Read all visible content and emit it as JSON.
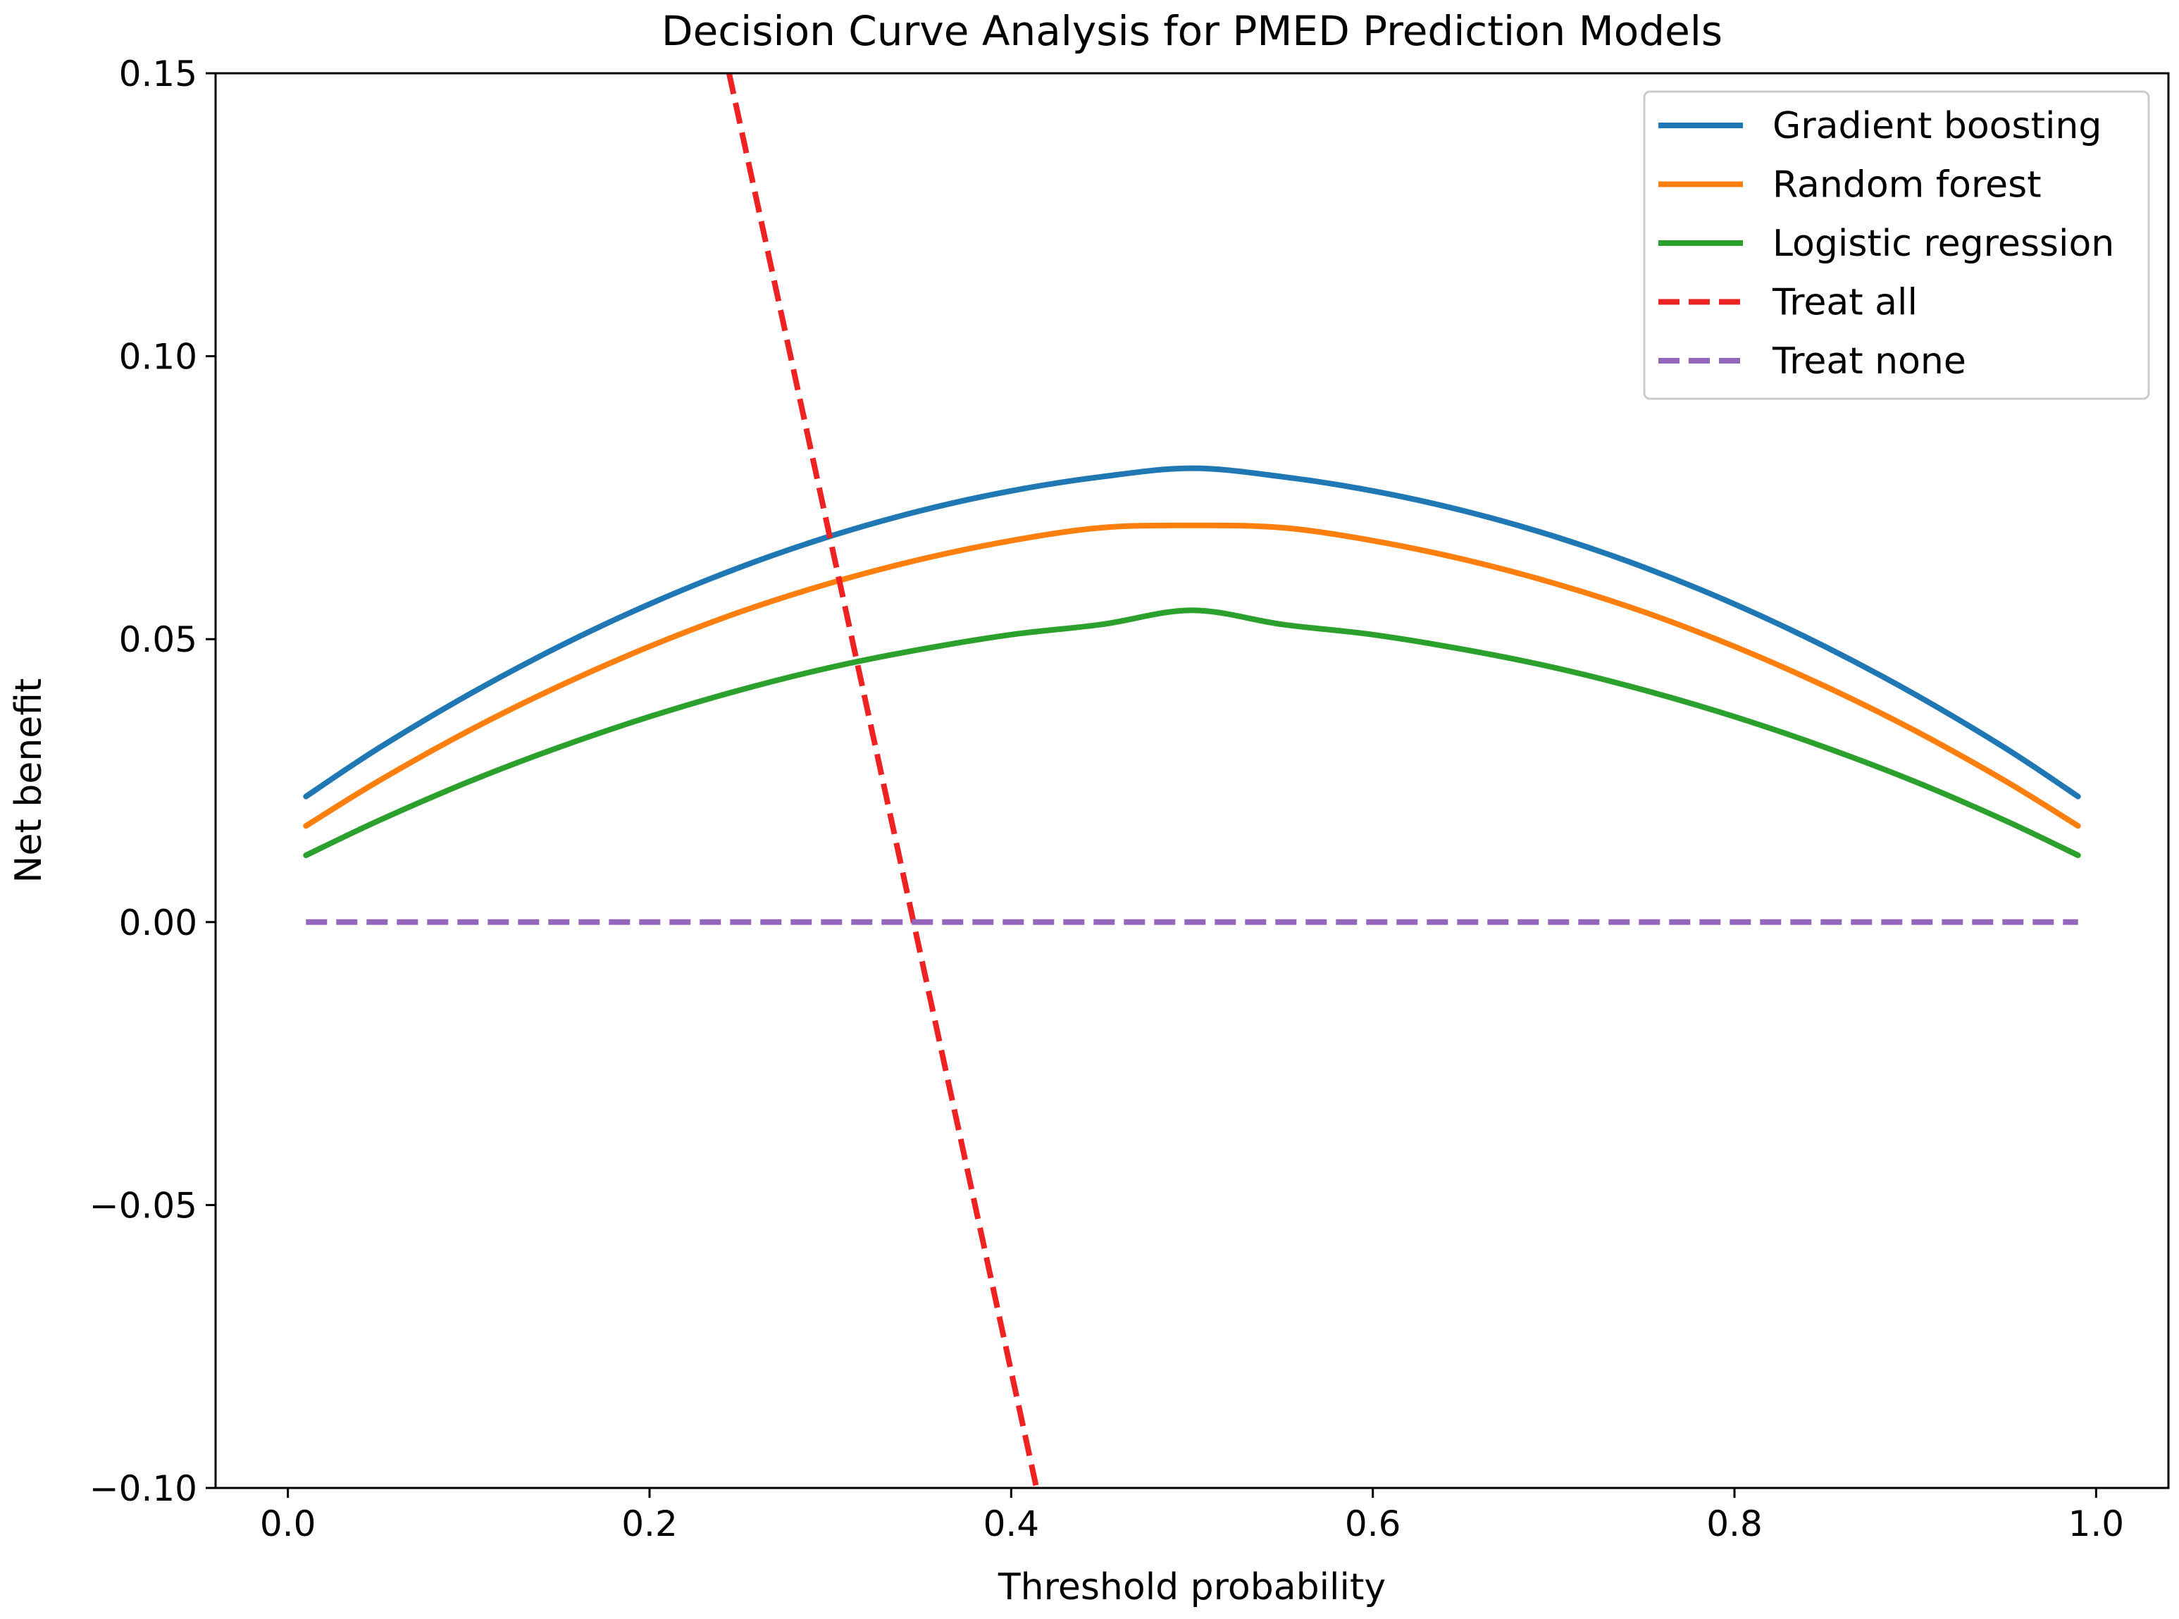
{
  "chart_data": {
    "type": "line",
    "title": "Decision Curve Analysis for PMED Prediction Models",
    "xlabel": "Threshold probability",
    "ylabel": "Net benefit",
    "xlim": [
      -0.04,
      1.04
    ],
    "ylim": [
      -0.1,
      0.15
    ],
    "xticks": [
      0.0,
      0.2,
      0.4,
      0.6,
      0.8,
      1.0
    ],
    "xtick_labels": [
      "0.0",
      "0.2",
      "0.4",
      "0.6",
      "0.8",
      "1.0"
    ],
    "yticks": [
      -0.1,
      -0.05,
      0.0,
      0.05,
      0.1,
      0.15
    ],
    "ytick_labels": [
      "−0.10",
      "−0.05",
      "0.00",
      "0.05",
      "0.10",
      "0.15"
    ],
    "grid": false,
    "legend_position": "top-right",
    "x": [
      0.01,
      0.05,
      0.1,
      0.15,
      0.2,
      0.25,
      0.3,
      0.35,
      0.4,
      0.45,
      0.5,
      0.55,
      0.6,
      0.65,
      0.7,
      0.75,
      0.8,
      0.85,
      0.9,
      0.95,
      0.99
    ],
    "series": [
      {
        "name": "Gradient boosting",
        "color": "#1f77b4",
        "style": "solid",
        "x": [
          0.01,
          0.05,
          0.1,
          0.15,
          0.2,
          0.25,
          0.3,
          0.35,
          0.4,
          0.45,
          0.5,
          0.55,
          0.6,
          0.65,
          0.7,
          0.75,
          0.8,
          0.85,
          0.9,
          0.95,
          0.99
        ],
        "values": [
          0.0222,
          0.0307,
          0.0402,
          0.0487,
          0.0562,
          0.0627,
          0.0682,
          0.0727,
          0.0762,
          0.0787,
          0.0802,
          0.0787,
          0.0762,
          0.0727,
          0.0682,
          0.0627,
          0.0562,
          0.0487,
          0.0402,
          0.0307,
          0.0222
        ]
      },
      {
        "name": "Random forest",
        "color": "#ff7f0e",
        "style": "solid",
        "x": [
          0.01,
          0.05,
          0.1,
          0.15,
          0.2,
          0.25,
          0.3,
          0.35,
          0.4,
          0.45,
          0.5,
          0.55,
          0.6,
          0.65,
          0.7,
          0.75,
          0.8,
          0.85,
          0.9,
          0.95,
          0.99
        ],
        "values": [
          0.017,
          0.0249,
          0.0338,
          0.0417,
          0.0487,
          0.0548,
          0.0599,
          0.0641,
          0.0674,
          0.0697,
          0.0701,
          0.0697,
          0.0674,
          0.0641,
          0.0599,
          0.0548,
          0.0487,
          0.0417,
          0.0338,
          0.0249,
          0.017
        ]
      },
      {
        "name": "Logistic regression",
        "color": "#2ca02c",
        "style": "solid",
        "x": [
          0.01,
          0.05,
          0.1,
          0.15,
          0.2,
          0.25,
          0.3,
          0.35,
          0.4,
          0.45,
          0.5,
          0.55,
          0.6,
          0.65,
          0.7,
          0.75,
          0.8,
          0.85,
          0.9,
          0.95,
          0.99
        ],
        "values": [
          0.0118,
          0.0179,
          0.0248,
          0.0309,
          0.0363,
          0.041,
          0.045,
          0.0482,
          0.0508,
          0.0526,
          0.0551,
          0.0526,
          0.0508,
          0.0482,
          0.045,
          0.041,
          0.0363,
          0.0309,
          0.0248,
          0.0179,
          0.0118
        ]
      },
      {
        "name": "Treat all",
        "color": "#ee2222",
        "style": "dashed",
        "x": [
          0.244,
          0.414
        ],
        "values": [
          0.15,
          -0.1
        ]
      },
      {
        "name": "Treat none",
        "color": "#9467bd",
        "style": "dashed",
        "x": [
          0.01,
          0.99
        ],
        "values": [
          0.0,
          0.0
        ]
      }
    ]
  }
}
